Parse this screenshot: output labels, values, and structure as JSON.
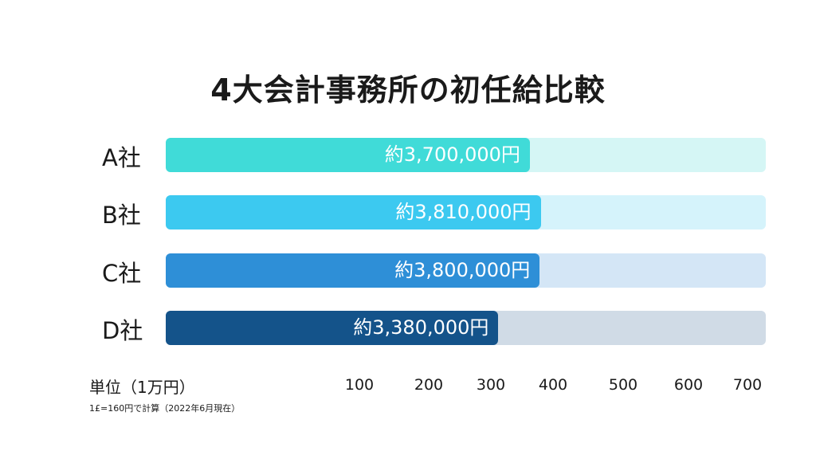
{
  "chart_data": {
    "type": "bar",
    "orientation": "horizontal",
    "title": "4大会計事務所の初任給比較",
    "categories": [
      "A社",
      "B社",
      "C社",
      "D社"
    ],
    "values": [
      370,
      381,
      380,
      338
    ],
    "data_labels": [
      "約3,700,000円",
      "約3,810,000円",
      "約3,800,000円",
      "約3,380,000円"
    ],
    "unit_label": "単位（1万円）",
    "x_ticks": [
      "100",
      "200",
      "300",
      "400",
      "500",
      "600",
      "700"
    ],
    "xlim": [
      0,
      700
    ],
    "note": "1£=160円で計算（2022年6月現在）",
    "grid": false,
    "colors": [
      "#40dbd8",
      "#3cc9f0",
      "#2e8fd7",
      "#14538a"
    ],
    "track_colors": [
      "#d5f6f5",
      "#d5f3fb",
      "#d4e6f6",
      "#d0dbe6"
    ]
  }
}
